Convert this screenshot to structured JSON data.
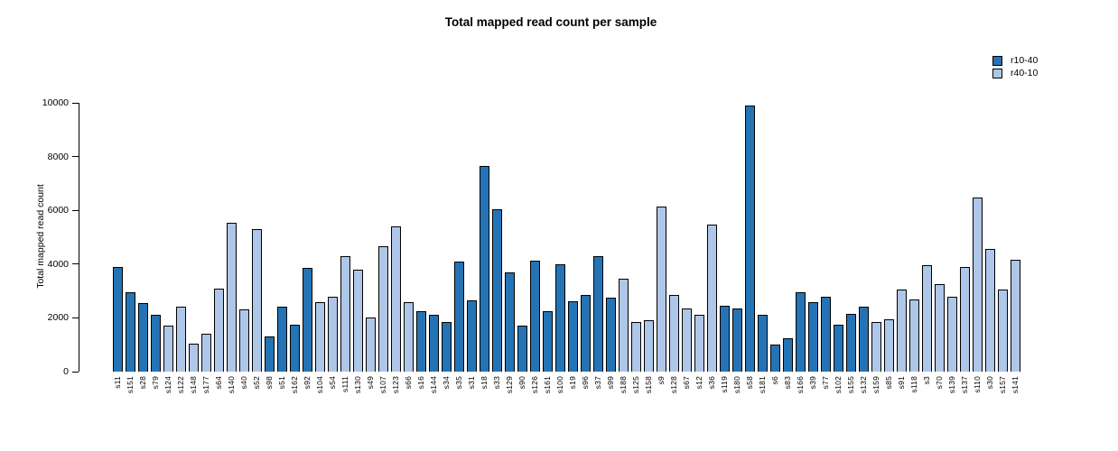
{
  "title": "Total mapped read count per sample",
  "legend": [
    {
      "label": "r10-40",
      "color": "#2474b5"
    },
    {
      "label": "r40-10",
      "color": "#aec6e8"
    }
  ],
  "chart_data": {
    "type": "bar",
    "title": "Total mapped read count per sample",
    "xlabel": "",
    "ylabel": "Total mapped read count",
    "ylim": [
      0,
      10000
    ],
    "yticks": [
      0,
      2000,
      4000,
      6000,
      8000,
      10000
    ],
    "grid": false,
    "legend_position": "top-right",
    "bar_border_color": "#000000",
    "series_colors": {
      "r10-40": "#2474b5",
      "r40-10": "#aec6e8"
    },
    "bars": [
      {
        "sample": "s11",
        "value": 3900,
        "group": "r10-40"
      },
      {
        "sample": "s151",
        "value": 2950,
        "group": "r10-40"
      },
      {
        "sample": "s28",
        "value": 2550,
        "group": "r10-40"
      },
      {
        "sample": "s79",
        "value": 2100,
        "group": "r10-40"
      },
      {
        "sample": "s124",
        "value": 1700,
        "group": "r40-10"
      },
      {
        "sample": "s122",
        "value": 2400,
        "group": "r40-10"
      },
      {
        "sample": "s148",
        "value": 1050,
        "group": "r40-10"
      },
      {
        "sample": "s177",
        "value": 1400,
        "group": "r40-10"
      },
      {
        "sample": "s64",
        "value": 3100,
        "group": "r40-10"
      },
      {
        "sample": "s140",
        "value": 5550,
        "group": "r40-10"
      },
      {
        "sample": "s40",
        "value": 2300,
        "group": "r40-10"
      },
      {
        "sample": "s52",
        "value": 5300,
        "group": "r40-10"
      },
      {
        "sample": "s98",
        "value": 1300,
        "group": "r10-40"
      },
      {
        "sample": "s51",
        "value": 2400,
        "group": "r10-40"
      },
      {
        "sample": "s162",
        "value": 1750,
        "group": "r10-40"
      },
      {
        "sample": "s92",
        "value": 3850,
        "group": "r10-40"
      },
      {
        "sample": "s104",
        "value": 2600,
        "group": "r40-10"
      },
      {
        "sample": "s54",
        "value": 2780,
        "group": "r40-10"
      },
      {
        "sample": "s111",
        "value": 4300,
        "group": "r40-10"
      },
      {
        "sample": "s130",
        "value": 3800,
        "group": "r40-10"
      },
      {
        "sample": "s49",
        "value": 2000,
        "group": "r40-10"
      },
      {
        "sample": "s107",
        "value": 4650,
        "group": "r40-10"
      },
      {
        "sample": "s123",
        "value": 5400,
        "group": "r40-10"
      },
      {
        "sample": "s66",
        "value": 2600,
        "group": "r40-10"
      },
      {
        "sample": "s16",
        "value": 2250,
        "group": "r10-40"
      },
      {
        "sample": "s144",
        "value": 2100,
        "group": "r10-40"
      },
      {
        "sample": "s34",
        "value": 1830,
        "group": "r10-40"
      },
      {
        "sample": "s35",
        "value": 4100,
        "group": "r10-40"
      },
      {
        "sample": "s31",
        "value": 2650,
        "group": "r10-40"
      },
      {
        "sample": "s18",
        "value": 7650,
        "group": "r10-40"
      },
      {
        "sample": "s33",
        "value": 6030,
        "group": "r10-40"
      },
      {
        "sample": "s129",
        "value": 3700,
        "group": "r10-40"
      },
      {
        "sample": "s90",
        "value": 1700,
        "group": "r10-40"
      },
      {
        "sample": "s126",
        "value": 4120,
        "group": "r10-40"
      },
      {
        "sample": "s161",
        "value": 2250,
        "group": "r10-40"
      },
      {
        "sample": "s100",
        "value": 4000,
        "group": "r10-40"
      },
      {
        "sample": "s19",
        "value": 2630,
        "group": "r10-40"
      },
      {
        "sample": "s96",
        "value": 2850,
        "group": "r10-40"
      },
      {
        "sample": "s37",
        "value": 4300,
        "group": "r10-40"
      },
      {
        "sample": "s99",
        "value": 2750,
        "group": "r10-40"
      },
      {
        "sample": "s188",
        "value": 3450,
        "group": "r40-10"
      },
      {
        "sample": "s125",
        "value": 1850,
        "group": "r40-10"
      },
      {
        "sample": "s158",
        "value": 1900,
        "group": "r40-10"
      },
      {
        "sample": "s9",
        "value": 6150,
        "group": "r40-10"
      },
      {
        "sample": "s128",
        "value": 2850,
        "group": "r40-10"
      },
      {
        "sample": "s67",
        "value": 2350,
        "group": "r40-10"
      },
      {
        "sample": "s12",
        "value": 2100,
        "group": "r40-10"
      },
      {
        "sample": "s36",
        "value": 5480,
        "group": "r40-10"
      },
      {
        "sample": "s119",
        "value": 2450,
        "group": "r10-40"
      },
      {
        "sample": "s180",
        "value": 2350,
        "group": "r10-40"
      },
      {
        "sample": "s58",
        "value": 9900,
        "group": "r10-40"
      },
      {
        "sample": "s181",
        "value": 2130,
        "group": "r10-40"
      },
      {
        "sample": "s6",
        "value": 1000,
        "group": "r10-40"
      },
      {
        "sample": "s83",
        "value": 1250,
        "group": "r10-40"
      },
      {
        "sample": "s166",
        "value": 2950,
        "group": "r10-40"
      },
      {
        "sample": "s39",
        "value": 2600,
        "group": "r10-40"
      },
      {
        "sample": "s77",
        "value": 2770,
        "group": "r10-40"
      },
      {
        "sample": "s102",
        "value": 1750,
        "group": "r10-40"
      },
      {
        "sample": "s155",
        "value": 2150,
        "group": "r10-40"
      },
      {
        "sample": "s132",
        "value": 2400,
        "group": "r10-40"
      },
      {
        "sample": "s159",
        "value": 1850,
        "group": "r40-10"
      },
      {
        "sample": "s85",
        "value": 1930,
        "group": "r40-10"
      },
      {
        "sample": "s91",
        "value": 3050,
        "group": "r40-10"
      },
      {
        "sample": "s118",
        "value": 2700,
        "group": "r40-10"
      },
      {
        "sample": "s3",
        "value": 3950,
        "group": "r40-10"
      },
      {
        "sample": "s70",
        "value": 3250,
        "group": "r40-10"
      },
      {
        "sample": "s139",
        "value": 2800,
        "group": "r40-10"
      },
      {
        "sample": "s137",
        "value": 3900,
        "group": "r40-10"
      },
      {
        "sample": "s110",
        "value": 6480,
        "group": "r40-10"
      },
      {
        "sample": "s30",
        "value": 4560,
        "group": "r40-10"
      },
      {
        "sample": "s157",
        "value": 3050,
        "group": "r40-10"
      },
      {
        "sample": "s141",
        "value": 4150,
        "group": "r40-10"
      }
    ]
  }
}
